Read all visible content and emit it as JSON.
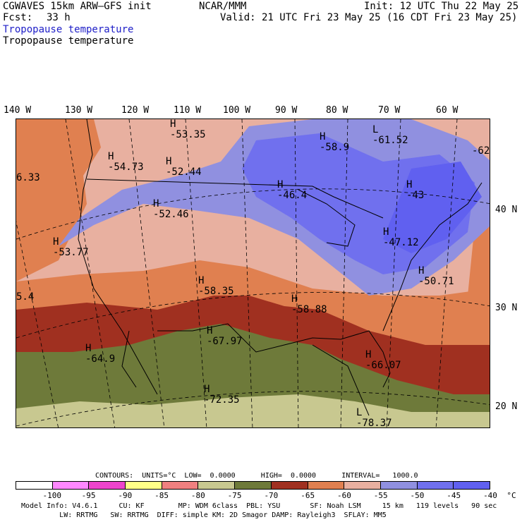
{
  "header": {
    "title": "CGWAVES 15km ARW–GFS init",
    "forecast_label": "Fcst:",
    "forecast_hours": "33 h",
    "center": "NCAR/MMM",
    "init": "Init: 12 UTC Thu 22 May 25",
    "valid": "Valid: 21 UTC Fri 23 May 25 (16 CDT Fri 23 May 25)",
    "field_1": "Tropopause temperature",
    "field_2": "Tropopause temperature"
  },
  "map": {
    "longitude_labels": [
      "140 W",
      "130 W",
      "120 W",
      "110 W",
      "100 W",
      "90 W",
      "80 W",
      "70 W",
      "60 W"
    ],
    "latitude_labels": [
      "40 N",
      "30 N",
      "20 N"
    ],
    "pressure_centers": [
      {
        "type": "H",
        "value": "-53.35"
      },
      {
        "type": "H",
        "value": "-58.9"
      },
      {
        "type": "L",
        "value": "-61.52"
      },
      {
        "type": "",
        "value": "-62"
      },
      {
        "type": "H",
        "value": "-54.73"
      },
      {
        "type": "H",
        "value": "-52.44"
      },
      {
        "type": "",
        "value": "6.33"
      },
      {
        "type": "H",
        "value": "-46.4"
      },
      {
        "type": "H",
        "value": "-43"
      },
      {
        "type": "H",
        "value": "-52.46"
      },
      {
        "type": "H",
        "value": "-47.12"
      },
      {
        "type": "H",
        "value": "-53.77"
      },
      {
        "type": "H",
        "value": "-50.71"
      },
      {
        "type": "",
        "value": "5.4"
      },
      {
        "type": "H",
        "value": "-58.35"
      },
      {
        "type": "H",
        "value": "-58.88"
      },
      {
        "type": "H",
        "value": "-67.97"
      },
      {
        "type": "H",
        "value": "-64.9"
      },
      {
        "type": "H",
        "value": "-66.07"
      },
      {
        "type": "H",
        "value": "-72.35"
      },
      {
        "type": "L",
        "value": "-78.37"
      }
    ]
  },
  "contours": {
    "text": "CONTOURS:  UNITS=°C  LOW=  0.0000      HIGH=  0.0000      INTERVAL=   1000.0"
  },
  "colorbar": {
    "colors": [
      "#ffffff",
      "#ff88ff",
      "#ee44cc",
      "#ffff88",
      "#f08080",
      "#c8c890",
      "#6e7a3a",
      "#a03020",
      "#e08050",
      "#e8b0a0",
      "#9090e0",
      "#7070ee",
      "#6060f0"
    ],
    "ticks": [
      "-100",
      "-95",
      "-90",
      "-85",
      "-80",
      "-75",
      "-70",
      "-65",
      "-60",
      "-55",
      "-50",
      "-45",
      "-40",
      "°C"
    ]
  },
  "footer": {
    "line_1": "Model Info: V4.6.1     CU: KF        MP: WDM 6class  PBL: YSU       SF: Noah LSM     15 km   119 levels   90 sec",
    "line_2": "         LW: RRTMG   SW: RRTMG  DIFF: simple KM: 2D Smagor DAMP: Rayleigh3  SFLAY: MM5"
  }
}
